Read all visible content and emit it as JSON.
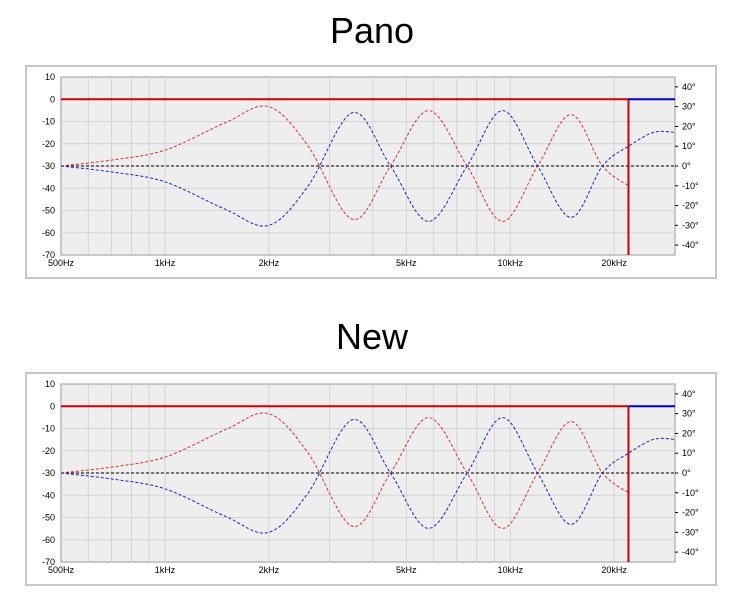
{
  "chart_data": [
    {
      "type": "line",
      "title": "Pano",
      "xlabel": "",
      "ylabel": "",
      "x_scale": "log",
      "xlim": [
        500,
        30000
      ],
      "ylim": [
        -70,
        10
      ],
      "y2lim": [
        -45,
        45
      ],
      "grid": true,
      "xtick_labels": [
        "500Hz",
        "1kHz",
        "2kHz",
        "5kHz",
        "10kHz",
        "20kHz"
      ],
      "xtick_values": [
        500,
        1000,
        2000,
        5000,
        10000,
        20000
      ],
      "ytick_labels": [
        "10",
        "0",
        "-10",
        "-20",
        "-30",
        "-40",
        "-50",
        "-60",
        "-70"
      ],
      "y2tick_labels": [
        "40°",
        "30°",
        "20°",
        "10°",
        "0°",
        "-10°",
        "-20°",
        "-30°",
        "-40°"
      ],
      "colors": {
        "magnitude": "#cc0000",
        "phase_red": "#e03030",
        "phase_blue": "#2020d0",
        "zero_line": "#000000",
        "cutoff_blue": "#0000cc"
      },
      "series": [
        {
          "kind": "magnitude_db",
          "x": [
            500,
            22000
          ],
          "y": [
            0,
            0
          ],
          "drop_at": 22000,
          "drop_to": -70
        },
        {
          "kind": "phase_deg",
          "x": [
            500,
            700,
            1000,
            1500,
            2000,
            2600,
            3500,
            4500,
            5800,
            7500,
            9500,
            12000,
            15000,
            18500,
            22000
          ],
          "y": [
            0,
            3,
            8,
            22,
            30,
            10,
            -27,
            0,
            28,
            0,
            -28,
            0,
            26,
            0,
            -10
          ]
        },
        {
          "kind": "phase_deg_mirror",
          "x": [
            500,
            700,
            1000,
            1500,
            2000,
            2600,
            3500,
            4500,
            5800,
            7500,
            9500,
            12000,
            15000,
            18500,
            22000,
            26000,
            30000
          ],
          "y": [
            0,
            -3,
            -8,
            -22,
            -30,
            -10,
            27,
            0,
            -28,
            0,
            28,
            0,
            -26,
            0,
            10,
            17,
            17
          ]
        }
      ]
    },
    {
      "type": "line",
      "title": "New",
      "xlabel": "",
      "ylabel": "",
      "x_scale": "log",
      "xlim": [
        500,
        30000
      ],
      "ylim": [
        -70,
        10
      ],
      "y2lim": [
        -45,
        45
      ],
      "grid": true,
      "xtick_labels": [
        "500Hz",
        "1kHz",
        "2kHz",
        "5kHz",
        "10kHz",
        "20kHz"
      ],
      "xtick_values": [
        500,
        1000,
        2000,
        5000,
        10000,
        20000
      ],
      "ytick_labels": [
        "10",
        "0",
        "-10",
        "-20",
        "-30",
        "-40",
        "-50",
        "-60",
        "-70"
      ],
      "y2tick_labels": [
        "40°",
        "30°",
        "20°",
        "10°",
        "0°",
        "-10°",
        "-20°",
        "-30°",
        "-40°"
      ],
      "colors": {
        "magnitude": "#cc0000",
        "phase_red": "#e03030",
        "phase_blue": "#2020d0",
        "zero_line": "#000000",
        "cutoff_blue": "#0000cc"
      },
      "series": [
        {
          "kind": "magnitude_db",
          "x": [
            500,
            22000
          ],
          "y": [
            0,
            0
          ],
          "drop_at": 22000,
          "drop_to": -70
        },
        {
          "kind": "phase_deg",
          "x": [
            500,
            700,
            1000,
            1500,
            2000,
            2600,
            3500,
            4500,
            5800,
            7500,
            9500,
            12000,
            15000,
            18500,
            22000
          ],
          "y": [
            0,
            3,
            8,
            22,
            30,
            10,
            -27,
            0,
            28,
            0,
            -28,
            0,
            26,
            0,
            -10
          ]
        },
        {
          "kind": "phase_deg_mirror",
          "x": [
            500,
            700,
            1000,
            1500,
            2000,
            2600,
            3500,
            4500,
            5800,
            7500,
            9500,
            12000,
            15000,
            18500,
            22000,
            26000,
            30000
          ],
          "y": [
            0,
            -3,
            -8,
            -22,
            -30,
            -10,
            27,
            0,
            -28,
            0,
            28,
            0,
            -26,
            0,
            10,
            17,
            17
          ]
        }
      ]
    }
  ]
}
